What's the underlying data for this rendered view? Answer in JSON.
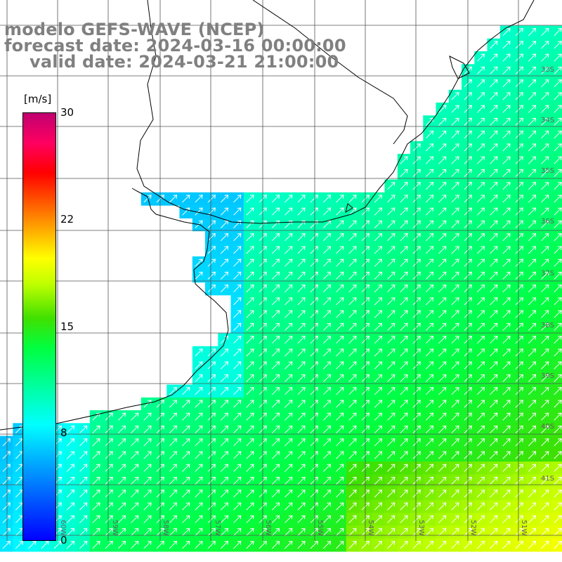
{
  "title": {
    "model": "modelo GEFS-WAVE (NCEP)",
    "forecast": "forecast date: 2024-03-16 00:00:00",
    "valid": "valid date: 2024-03-21 21:00:00"
  },
  "colorbar": {
    "unit": "[m/s]",
    "min": 0,
    "max": 30,
    "ticks": [
      "30",
      "22",
      "15",
      "8",
      "0"
    ],
    "colors": [
      "#0000ff",
      "#00a8ff",
      "#00ffff",
      "#00ff40",
      "#40e000",
      "#c0ff00",
      "#ffff00",
      "#ff8000",
      "#ff0000",
      "#ff0060",
      "#c00070"
    ]
  },
  "grid": {
    "lat_labels": [
      "33S",
      "34S",
      "35S",
      "36S",
      "37S",
      "38S",
      "39S",
      "40S",
      "41S"
    ],
    "lon_labels": [
      "60W",
      "59W",
      "58W",
      "57W",
      "56W",
      "55W",
      "54W",
      "53W",
      "52W",
      "51W"
    ]
  },
  "field": {
    "variable": "wind speed",
    "arrow_direction": "toward northeast",
    "speed_range_ms": [
      4,
      20
    ]
  }
}
